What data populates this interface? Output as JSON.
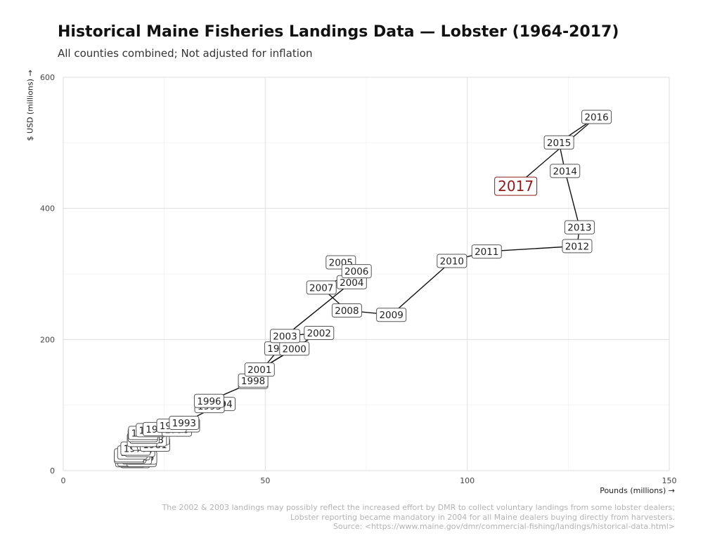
{
  "chart_data": {
    "type": "line",
    "title": "Historical Maine Fisheries Landings Data — Lobster (1964-2017)",
    "subtitle": "All counties combined; Not adjusted for inflation",
    "xlabel": "Pounds (millions) →",
    "ylabel": "$ USD (millions) →",
    "xlim": [
      0,
      150
    ],
    "ylim": [
      0,
      600
    ],
    "xticks": [
      0,
      50,
      100,
      150
    ],
    "yticks": [
      0,
      200,
      400,
      600
    ],
    "highlight_year": 2017,
    "highlight_color": "#8b1a1a",
    "caption": [
      "The 2002 & 2003 landings may possibly reflect the increased effort by DMR to collect voluntary landings from some lobster dealers;",
      "Lobster reporting became mandatory in 2004 for all Maine dealers buying directly from harvesters.",
      "Source: <https://www.maine.gov/dmr/commercial-fishing/landings/historical-data.html>"
    ],
    "points": [
      {
        "year": 1964,
        "x": 17.8,
        "y": 14.5
      },
      {
        "year": 1965,
        "x": 16.6,
        "y": 15.8
      },
      {
        "year": 1966,
        "x": 18.9,
        "y": 18.2
      },
      {
        "year": 1967,
        "x": 17.1,
        "y": 16.9
      },
      {
        "year": 1968,
        "x": 19.4,
        "y": 16.2
      },
      {
        "year": 1969,
        "x": 19.5,
        "y": 19.8
      },
      {
        "year": 1970,
        "x": 18.2,
        "y": 20.1
      },
      {
        "year": 1971,
        "x": 16.8,
        "y": 21.5
      },
      {
        "year": 1972,
        "x": 16.3,
        "y": 21.1
      },
      {
        "year": 1973,
        "x": 17.8,
        "y": 26.4
      },
      {
        "year": 1974,
        "x": 16.3,
        "y": 23.3
      },
      {
        "year": 1975,
        "x": 17.1,
        "y": 27.6
      },
      {
        "year": 1976,
        "x": 19.0,
        "y": 31.3
      },
      {
        "year": 1977,
        "x": 17.9,
        "y": 33.6
      },
      {
        "year": 1978,
        "x": 20.6,
        "y": 41.0
      },
      {
        "year": 1979,
        "x": 22.0,
        "y": 42.5
      },
      {
        "year": 1980,
        "x": 22.0,
        "y": 41.1
      },
      {
        "year": 1981,
        "x": 22.7,
        "y": 39.6
      },
      {
        "year": 1982,
        "x": 22.6,
        "y": 49.6
      },
      {
        "year": 1983,
        "x": 21.9,
        "y": 47.3
      },
      {
        "year": 1984,
        "x": 19.5,
        "y": 46.8
      },
      {
        "year": 1985,
        "x": 20.1,
        "y": 51.5
      },
      {
        "year": 1986,
        "x": 19.7,
        "y": 54.1
      },
      {
        "year": 1987,
        "x": 19.8,
        "y": 57.4
      },
      {
        "year": 1988,
        "x": 21.7,
        "y": 61.7
      },
      {
        "year": 1989,
        "x": 23.4,
        "y": 63.3
      },
      {
        "year": 1990,
        "x": 28.1,
        "y": 62.5
      },
      {
        "year": 1991,
        "x": 30.1,
        "y": 69.0
      },
      {
        "year": 1992,
        "x": 26.8,
        "y": 68.5
      },
      {
        "year": 1993,
        "x": 29.9,
        "y": 72.9
      },
      {
        "year": 1994,
        "x": 38.9,
        "y": 101.7
      },
      {
        "year": 1995,
        "x": 36.2,
        "y": 98.5
      },
      {
        "year": 1996,
        "x": 36.1,
        "y": 106.3
      },
      {
        "year": 1997,
        "x": 47.0,
        "y": 135.2
      },
      {
        "year": 1998,
        "x": 47.0,
        "y": 137.4
      },
      {
        "year": 1999,
        "x": 53.5,
        "y": 186.3
      },
      {
        "year": 2000,
        "x": 57.2,
        "y": 186.1
      },
      {
        "year": 2001,
        "x": 48.6,
        "y": 154.1
      },
      {
        "year": 2002,
        "x": 63.3,
        "y": 210.0
      },
      {
        "year": 2003,
        "x": 54.9,
        "y": 205.3
      },
      {
        "year": 2004,
        "x": 71.4,
        "y": 287.4
      },
      {
        "year": 2005,
        "x": 68.7,
        "y": 317.7
      },
      {
        "year": 2006,
        "x": 72.6,
        "y": 304.2
      },
      {
        "year": 2007,
        "x": 63.9,
        "y": 279.2
      },
      {
        "year": 2008,
        "x": 70.2,
        "y": 244.3
      },
      {
        "year": 2009,
        "x": 81.2,
        "y": 237.6
      },
      {
        "year": 2010,
        "x": 96.2,
        "y": 319.8
      },
      {
        "year": 2011,
        "x": 104.8,
        "y": 334.2
      },
      {
        "year": 2012,
        "x": 127.2,
        "y": 342.5
      },
      {
        "year": 2013,
        "x": 127.8,
        "y": 371.1
      },
      {
        "year": 2014,
        "x": 124.2,
        "y": 457.1
      },
      {
        "year": 2015,
        "x": 122.7,
        "y": 500.6
      },
      {
        "year": 2016,
        "x": 132.0,
        "y": 539.5
      },
      {
        "year": 2017,
        "x": 112.0,
        "y": 433.8
      }
    ]
  }
}
